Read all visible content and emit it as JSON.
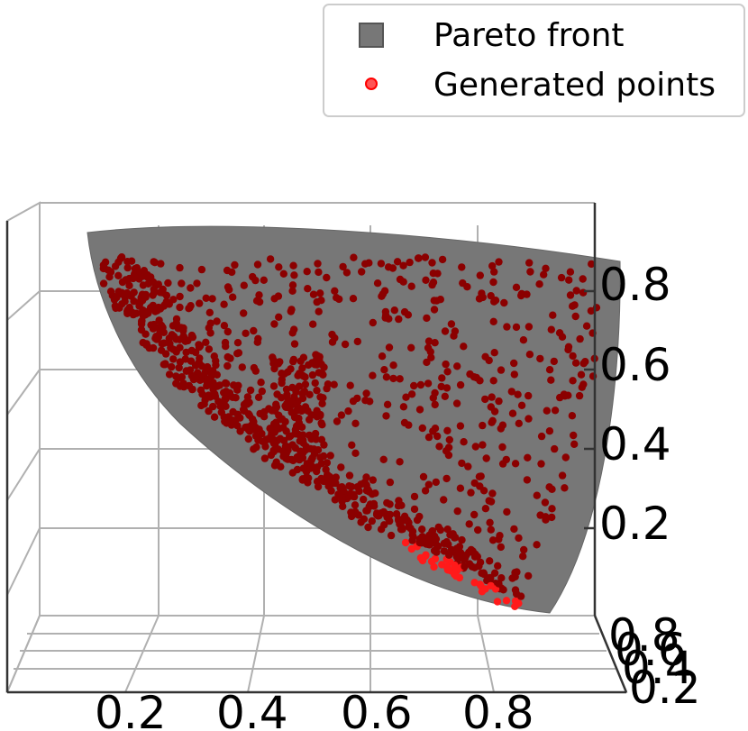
{
  "chart_data": {
    "type": "scatter",
    "projection": "3d",
    "title": "",
    "legend_placement": "top-right",
    "series": [
      {
        "name": "Pareto front",
        "kind": "surface",
        "color": "#777777"
      },
      {
        "name": "Generated points",
        "kind": "scatter",
        "color": "#ff0000",
        "count": 1100
      }
    ],
    "x_ticks": [
      "0.2",
      "0.4",
      "0.6",
      "0.8"
    ],
    "y_ticks": [
      "0.2",
      "0.4",
      "0.6",
      "0.8"
    ],
    "z_ticks": [
      "0.2",
      "0.4",
      "0.6",
      "0.8"
    ],
    "xlim": [
      0,
      1
    ],
    "ylim": [
      0,
      1
    ],
    "zlim": [
      0,
      1
    ],
    "grid": true
  }
}
